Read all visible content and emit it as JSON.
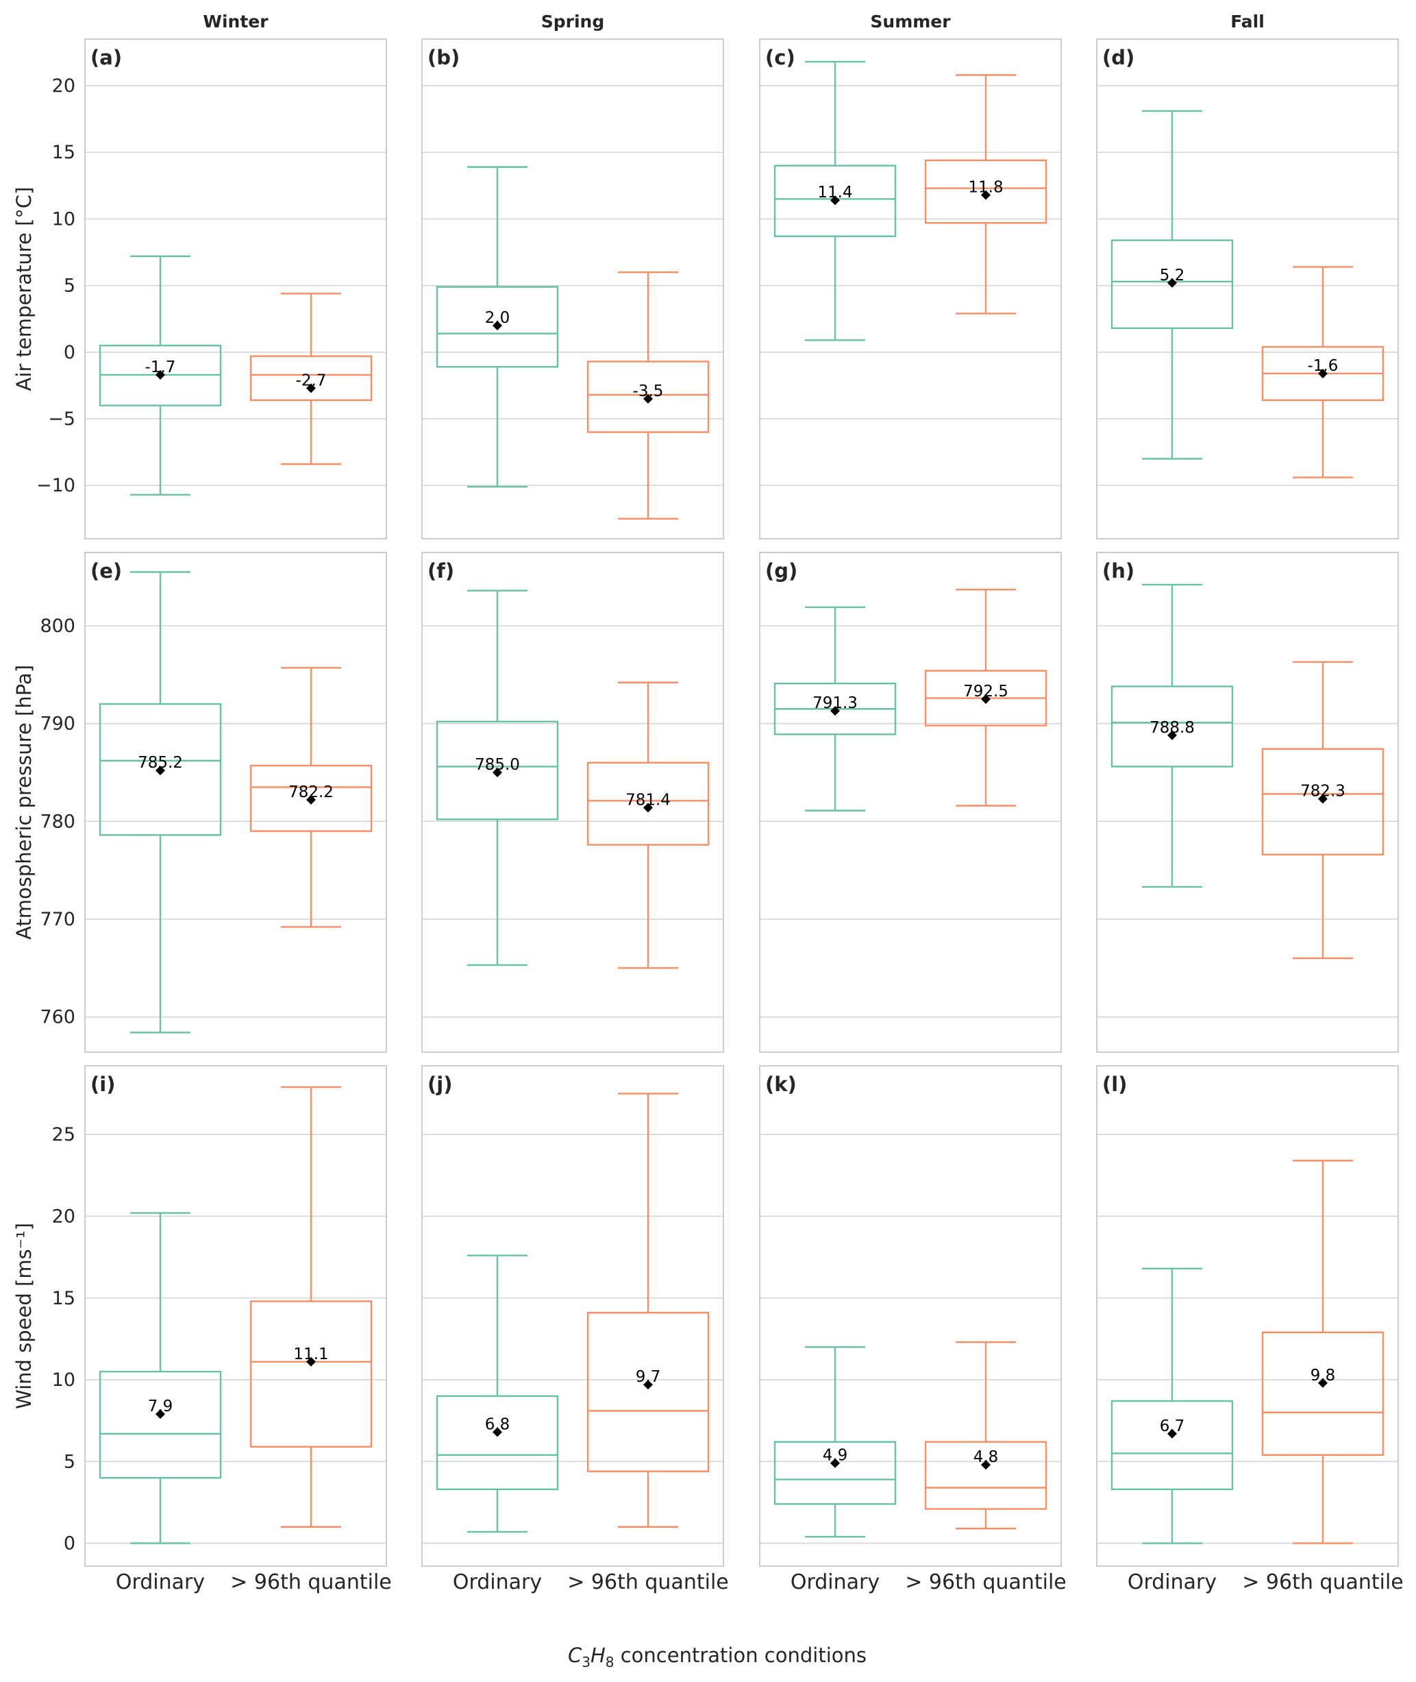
{
  "chart_data": {
    "type": "box",
    "columns": [
      "Winter",
      "Spring",
      "Summer",
      "Fall"
    ],
    "categories": [
      "Ordinary",
      "> 96th quantile"
    ],
    "colors": {
      "Ordinary": "#66c2a5",
      "> 96th quantile": "#fc8d62",
      "mean_marker": "#000000"
    },
    "xlabel": {
      "prefix_italic_1": "C",
      "sub_1": "3",
      "prefix_italic_2": "H",
      "sub_2": "8",
      "suffix": " concentration conditions"
    },
    "rows": [
      {
        "ylabel": "Air temperature [°C]",
        "ylim": [
          -14,
          23.5
        ],
        "yticks": [
          -10,
          -5,
          0,
          5,
          10,
          15,
          20
        ],
        "ytick_labels": [
          "−10",
          "−5",
          "0",
          "5",
          "10",
          "15",
          "20"
        ],
        "panels": [
          {
            "label": "(a)",
            "boxes": [
              {
                "whisker_low": -10.7,
                "q1": -4.0,
                "median": -1.7,
                "q3": 0.5,
                "whisker_high": 7.2,
                "mean": -1.7,
                "mean_label": "-1.7"
              },
              {
                "whisker_low": -8.4,
                "q1": -3.6,
                "median": -1.7,
                "q3": -0.3,
                "whisker_high": 4.4,
                "mean": -2.7,
                "mean_label": "-2.7"
              }
            ]
          },
          {
            "label": "(b)",
            "boxes": [
              {
                "whisker_low": -10.1,
                "q1": -1.1,
                "median": 1.4,
                "q3": 4.9,
                "whisker_high": 13.9,
                "mean": 2.0,
                "mean_label": "2.0"
              },
              {
                "whisker_low": -12.5,
                "q1": -6.0,
                "median": -3.2,
                "q3": -0.7,
                "whisker_high": 6.0,
                "mean": -3.5,
                "mean_label": "-3.5"
              }
            ]
          },
          {
            "label": "(c)",
            "boxes": [
              {
                "whisker_low": 0.9,
                "q1": 8.7,
                "median": 11.5,
                "q3": 14.0,
                "whisker_high": 21.8,
                "mean": 11.4,
                "mean_label": "11.4"
              },
              {
                "whisker_low": 2.9,
                "q1": 9.7,
                "median": 12.3,
                "q3": 14.4,
                "whisker_high": 20.8,
                "mean": 11.8,
                "mean_label": "11.8"
              }
            ]
          },
          {
            "label": "(d)",
            "boxes": [
              {
                "whisker_low": -8.0,
                "q1": 1.8,
                "median": 5.3,
                "q3": 8.4,
                "whisker_high": 18.1,
                "mean": 5.2,
                "mean_label": "5.2"
              },
              {
                "whisker_low": -9.4,
                "q1": -3.6,
                "median": -1.6,
                "q3": 0.4,
                "whisker_high": 6.4,
                "mean": -1.6,
                "mean_label": "-1.6"
              }
            ]
          }
        ]
      },
      {
        "ylabel": "Atmospheric pressure [hPa]",
        "ylim": [
          756.4,
          807.5
        ],
        "yticks": [
          760,
          770,
          780,
          790,
          800
        ],
        "ytick_labels": [
          "760",
          "770",
          "780",
          "790",
          "800"
        ],
        "panels": [
          {
            "label": "(e)",
            "boxes": [
              {
                "whisker_low": 758.4,
                "q1": 778.6,
                "median": 786.2,
                "q3": 792.0,
                "whisker_high": 805.5,
                "mean": 785.2,
                "mean_label": "785.2"
              },
              {
                "whisker_low": 769.2,
                "q1": 779.0,
                "median": 783.5,
                "q3": 785.7,
                "whisker_high": 795.7,
                "mean": 782.2,
                "mean_label": "782.2"
              }
            ]
          },
          {
            "label": "(f)",
            "boxes": [
              {
                "whisker_low": 765.3,
                "q1": 780.2,
                "median": 785.6,
                "q3": 790.2,
                "whisker_high": 803.6,
                "mean": 785.0,
                "mean_label": "785.0"
              },
              {
                "whisker_low": 765.0,
                "q1": 777.6,
                "median": 782.1,
                "q3": 786.0,
                "whisker_high": 794.2,
                "mean": 781.4,
                "mean_label": "781.4"
              }
            ]
          },
          {
            "label": "(g)",
            "boxes": [
              {
                "whisker_low": 781.1,
                "q1": 788.9,
                "median": 791.5,
                "q3": 794.1,
                "whisker_high": 801.9,
                "mean": 791.3,
                "mean_label": "791.3"
              },
              {
                "whisker_low": 781.6,
                "q1": 789.8,
                "median": 792.6,
                "q3": 795.4,
                "whisker_high": 803.7,
                "mean": 792.5,
                "mean_label": "792.5"
              }
            ]
          },
          {
            "label": "(h)",
            "boxes": [
              {
                "whisker_low": 773.3,
                "q1": 785.6,
                "median": 790.1,
                "q3": 793.8,
                "whisker_high": 804.2,
                "mean": 788.8,
                "mean_label": "788.8"
              },
              {
                "whisker_low": 766.0,
                "q1": 776.6,
                "median": 782.8,
                "q3": 787.4,
                "whisker_high": 796.3,
                "mean": 782.3,
                "mean_label": "782.3"
              }
            ]
          }
        ]
      },
      {
        "ylabel": "Wind speed [ms⁻¹]",
        "ylim": [
          -1.4,
          29.2
        ],
        "yticks": [
          0,
          5,
          10,
          15,
          20,
          25
        ],
        "ytick_labels": [
          "0",
          "5",
          "10",
          "15",
          "20",
          "25"
        ],
        "panels": [
          {
            "label": "(i)",
            "boxes": [
              {
                "whisker_low": 0.0,
                "q1": 4.0,
                "median": 6.7,
                "q3": 10.5,
                "whisker_high": 20.2,
                "mean": 7.9,
                "mean_label": "7.9"
              },
              {
                "whisker_low": 1.0,
                "q1": 5.9,
                "median": 11.1,
                "q3": 14.8,
                "whisker_high": 27.9,
                "mean": 11.1,
                "mean_label": "11.1"
              }
            ]
          },
          {
            "label": "(j)",
            "boxes": [
              {
                "whisker_low": 0.7,
                "q1": 3.3,
                "median": 5.4,
                "q3": 9.0,
                "whisker_high": 17.6,
                "mean": 6.8,
                "mean_label": "6.8"
              },
              {
                "whisker_low": 1.0,
                "q1": 4.4,
                "median": 8.1,
                "q3": 14.1,
                "whisker_high": 27.5,
                "mean": 9.7,
                "mean_label": "9.7"
              }
            ]
          },
          {
            "label": "(k)",
            "boxes": [
              {
                "whisker_low": 0.4,
                "q1": 2.4,
                "median": 3.9,
                "q3": 6.2,
                "whisker_high": 12.0,
                "mean": 4.9,
                "mean_label": "4.9"
              },
              {
                "whisker_low": 0.9,
                "q1": 2.1,
                "median": 3.4,
                "q3": 6.2,
                "whisker_high": 12.3,
                "mean": 4.8,
                "mean_label": "4.8"
              }
            ]
          },
          {
            "label": "(l)",
            "boxes": [
              {
                "whisker_low": 0.0,
                "q1": 3.3,
                "median": 5.5,
                "q3": 8.7,
                "whisker_high": 16.8,
                "mean": 6.7,
                "mean_label": "6.7"
              },
              {
                "whisker_low": 0.0,
                "q1": 5.4,
                "median": 8.0,
                "q3": 12.9,
                "whisker_high": 23.4,
                "mean": 9.8,
                "mean_label": "9.8"
              }
            ]
          }
        ]
      }
    ],
    "grid": true
  }
}
